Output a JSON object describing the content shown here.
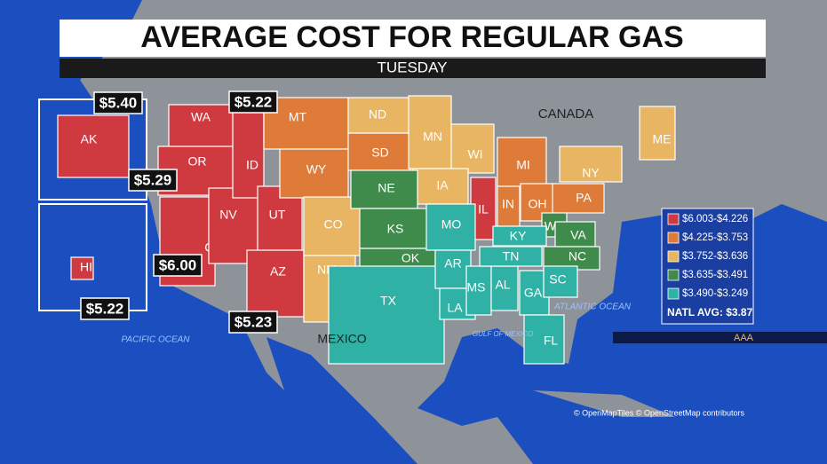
{
  "header": {
    "title": "AVERAGE COST FOR REGULAR GAS",
    "subtitle": "TUESDAY"
  },
  "states": [
    {
      "label": "WA",
      "color": "#cf3a40"
    },
    {
      "label": "OR",
      "color": "#cf3a40"
    },
    {
      "label": "CA",
      "color": "#cf3a40"
    },
    {
      "label": "NV",
      "color": "#cf3a40"
    },
    {
      "label": "ID",
      "color": "#cf3a40"
    },
    {
      "label": "UT",
      "color": "#cf3a40"
    },
    {
      "label": "AZ",
      "color": "#cf3a40"
    },
    {
      "label": "IL",
      "color": "#cf3a40"
    },
    {
      "label": "MT",
      "color": "#df7b38"
    },
    {
      "label": "WY",
      "color": "#df7b38"
    },
    {
      "label": "SD",
      "color": "#df7b38"
    },
    {
      "label": "MI",
      "color": "#df7b38"
    },
    {
      "label": "IN",
      "color": "#df7b38"
    },
    {
      "label": "OH",
      "color": "#df7b38"
    },
    {
      "label": "PA",
      "color": "#df7b38"
    },
    {
      "label": "ND",
      "color": "#e8b562"
    },
    {
      "label": "CO",
      "color": "#e8b562"
    },
    {
      "label": "NM",
      "color": "#e8b562"
    },
    {
      "label": "MN",
      "color": "#e8b562"
    },
    {
      "label": "WI",
      "color": "#e8b562"
    },
    {
      "label": "IA",
      "color": "#e8b562"
    },
    {
      "label": "NY",
      "color": "#e8b562"
    },
    {
      "label": "ME",
      "color": "#e8b562"
    },
    {
      "label": "NE",
      "color": "#3f8b4b"
    },
    {
      "label": "KS",
      "color": "#3f8b4b"
    },
    {
      "label": "OK",
      "color": "#3f8b4b"
    },
    {
      "label": "WV",
      "color": "#3f8b4b"
    },
    {
      "label": "VA",
      "color": "#3f8b4b"
    },
    {
      "label": "NC",
      "color": "#3f8b4b"
    },
    {
      "label": "TX",
      "color": "#2fb2a5"
    },
    {
      "label": "MO",
      "color": "#2fb2a5"
    },
    {
      "label": "AR",
      "color": "#2fb2a5"
    },
    {
      "label": "LA",
      "color": "#2fb2a5"
    },
    {
      "label": "MS",
      "color": "#2fb2a5"
    },
    {
      "label": "AL",
      "color": "#2fb2a5"
    },
    {
      "label": "GA",
      "color": "#2fb2a5"
    },
    {
      "label": "FL",
      "color": "#2fb2a5"
    },
    {
      "label": "SC",
      "color": "#2fb2a5"
    },
    {
      "label": "KY",
      "color": "#2fb2a5"
    },
    {
      "label": "TN",
      "color": "#2fb2a5"
    },
    {
      "label": "AK",
      "color": "#cf3a40"
    },
    {
      "label": "HI",
      "color": "#cf3a40"
    }
  ],
  "callouts": [
    "$5.40",
    "$5.22",
    "$5.29",
    "$6.00",
    "$5.22",
    "$5.23"
  ],
  "legend": {
    "items": [
      {
        "label": "$6.003-$4.226",
        "color": "#cf3a40"
      },
      {
        "label": "$4.225-$3.753",
        "color": "#df7b38"
      },
      {
        "label": "$3.752-$3.636",
        "color": "#e8b562"
      },
      {
        "label": "$3.635-$3.491",
        "color": "#3f8b4b"
      },
      {
        "label": "$3.490-$3.249",
        "color": "#2fb2a5"
      }
    ],
    "national_average": "NATL AVG: $3.87"
  },
  "places": [
    "CANADA",
    "MEXICO",
    "PACIFIC OCEAN",
    "ATLANTIC OCEAN",
    "GULF OF MEXICO"
  ],
  "source": "AAA",
  "attribution": "© OpenMapTiles © OpenStreetMap contributors"
}
